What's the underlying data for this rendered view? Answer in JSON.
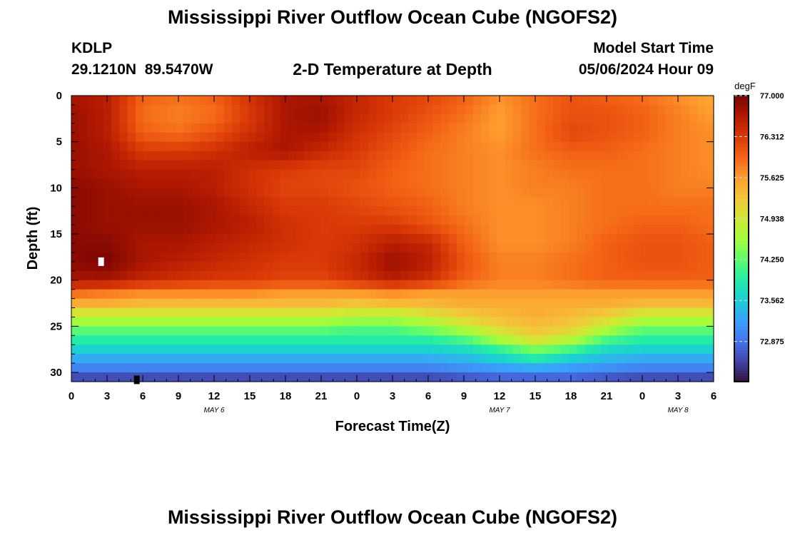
{
  "header": {
    "title": "Mississippi River Outflow Ocean Cube (NGOFS2)",
    "station_id": "KDLP",
    "coordinates": "29.1210N  89.5470W",
    "subtitle": "2-D Temperature at Depth",
    "model_start_label": "Model Start Time",
    "model_start_value": "05/06/2024 Hour 09"
  },
  "footer": {
    "title": "Mississippi River Outflow Ocean Cube (NGOFS2)"
  },
  "chart_data": {
    "type": "heatmap",
    "title": "2-D Temperature at Depth",
    "xlabel": "Forecast Time(Z)",
    "ylabel": "Depth (ft)",
    "x_unit": "hours since 2024-05-06 00Z",
    "xlim": [
      0,
      54
    ],
    "ylim": [
      0,
      31
    ],
    "y_inverted": true,
    "x_ticks": [
      {
        "value": 0,
        "label": "0"
      },
      {
        "value": 3,
        "label": "3"
      },
      {
        "value": 6,
        "label": "6"
      },
      {
        "value": 9,
        "label": "9"
      },
      {
        "value": 12,
        "label": "12"
      },
      {
        "value": 15,
        "label": "15"
      },
      {
        "value": 18,
        "label": "18"
      },
      {
        "value": 21,
        "label": "21"
      },
      {
        "value": 24,
        "label": "0"
      },
      {
        "value": 27,
        "label": "3"
      },
      {
        "value": 30,
        "label": "6"
      },
      {
        "value": 33,
        "label": "9"
      },
      {
        "value": 36,
        "label": "12"
      },
      {
        "value": 39,
        "label": "15"
      },
      {
        "value": 42,
        "label": "18"
      },
      {
        "value": 45,
        "label": "21"
      },
      {
        "value": 48,
        "label": "0"
      },
      {
        "value": 51,
        "label": "3"
      },
      {
        "value": 54,
        "label": "6"
      }
    ],
    "date_labels": [
      {
        "value": 12,
        "label": "MAY 6"
      },
      {
        "value": 36,
        "label": "MAY 7"
      },
      {
        "value": 51,
        "label": "MAY 8"
      }
    ],
    "y_ticks": [
      {
        "value": 0,
        "label": "0"
      },
      {
        "value": 5,
        "label": "5"
      },
      {
        "value": 10,
        "label": "10"
      },
      {
        "value": 15,
        "label": "15"
      },
      {
        "value": 20,
        "label": "20"
      },
      {
        "value": 25,
        "label": "25"
      },
      {
        "value": 30,
        "label": "30"
      }
    ],
    "colorbar": {
      "unit": "degF",
      "min": 72.2,
      "max": 77.0,
      "ticks": [
        {
          "value": 77.0,
          "label": "77.000"
        },
        {
          "value": 76.312,
          "label": "76.312"
        },
        {
          "value": 75.625,
          "label": "75.625"
        },
        {
          "value": 74.938,
          "label": "74.938"
        },
        {
          "value": 74.25,
          "label": "74.250"
        },
        {
          "value": 73.562,
          "label": "73.562"
        },
        {
          "value": 72.875,
          "label": "72.875"
        }
      ],
      "colors": [
        "#30123b",
        "#4145ab",
        "#4675ed",
        "#39a2fc",
        "#1bcfd4",
        "#24eca6",
        "#61fc6c",
        "#a4fc3b",
        "#d1e834",
        "#f3c63a",
        "#fe9b2d",
        "#f36315",
        "#d93806",
        "#b11901",
        "#7a0402"
      ]
    },
    "grid": {
      "x_hours": [
        0,
        3,
        6,
        9,
        12,
        15,
        18,
        21,
        24,
        27,
        30,
        33,
        36,
        39,
        42,
        45,
        48,
        51,
        54
      ],
      "depths_ft": [
        0,
        2,
        4,
        6,
        8,
        10,
        12,
        14,
        16,
        18,
        20,
        21.5,
        22.5,
        23.5,
        24.5,
        25.5,
        26.5,
        27.5,
        28.5,
        29.5,
        30.5
      ],
      "values_degF": [
        [
          76.7,
          76.6,
          76.0,
          75.9,
          76.0,
          76.4,
          76.7,
          76.7,
          76.5,
          76.3,
          76.2,
          76.0,
          75.7,
          75.9,
          76.1,
          76.0,
          75.9,
          75.7,
          75.5
        ],
        [
          76.8,
          76.6,
          75.9,
          75.8,
          75.9,
          76.3,
          76.7,
          76.8,
          76.5,
          76.3,
          76.1,
          75.9,
          75.6,
          75.9,
          76.1,
          76.1,
          76.0,
          75.8,
          75.6
        ],
        [
          76.8,
          76.6,
          76.0,
          75.9,
          76.1,
          76.4,
          76.7,
          76.7,
          76.4,
          76.2,
          76.0,
          75.8,
          75.6,
          75.9,
          76.2,
          76.1,
          76.0,
          75.8,
          75.7
        ],
        [
          76.8,
          76.7,
          76.3,
          76.3,
          76.4,
          76.6,
          76.7,
          76.5,
          76.3,
          76.1,
          75.9,
          75.8,
          75.7,
          75.9,
          76.0,
          76.0,
          75.9,
          75.8,
          75.7
        ],
        [
          76.8,
          76.7,
          76.6,
          76.6,
          76.6,
          76.4,
          76.3,
          76.2,
          76.2,
          76.0,
          75.9,
          75.8,
          75.7,
          75.8,
          75.9,
          75.9,
          75.9,
          75.8,
          75.7
        ],
        [
          76.9,
          76.8,
          76.7,
          76.7,
          76.6,
          76.4,
          76.2,
          76.2,
          76.1,
          76.0,
          75.9,
          75.8,
          75.7,
          75.8,
          75.8,
          75.9,
          75.9,
          75.8,
          75.8
        ],
        [
          76.9,
          76.8,
          76.8,
          76.8,
          76.7,
          76.5,
          76.3,
          76.3,
          76.2,
          76.1,
          76.0,
          75.8,
          75.7,
          75.7,
          75.8,
          75.9,
          75.9,
          75.9,
          75.9
        ],
        [
          76.9,
          76.8,
          76.8,
          76.8,
          76.7,
          76.6,
          76.4,
          76.3,
          76.3,
          76.3,
          76.1,
          75.9,
          75.7,
          75.7,
          75.8,
          75.9,
          76.0,
          76.0,
          75.9
        ],
        [
          76.9,
          76.9,
          76.7,
          76.7,
          76.6,
          76.5,
          76.4,
          76.3,
          76.4,
          76.6,
          76.5,
          76.0,
          75.7,
          75.7,
          75.8,
          76.0,
          76.1,
          76.1,
          76.0
        ],
        [
          76.9,
          77.0,
          76.7,
          76.6,
          76.5,
          76.4,
          76.3,
          76.3,
          76.5,
          76.8,
          76.6,
          76.1,
          75.8,
          75.8,
          75.9,
          76.0,
          76.1,
          76.1,
          76.0
        ],
        [
          76.7,
          76.7,
          76.5,
          76.4,
          76.3,
          76.3,
          76.2,
          76.2,
          76.4,
          76.6,
          76.4,
          76.0,
          75.8,
          75.8,
          75.9,
          76.0,
          76.0,
          76.0,
          76.0
        ],
        [
          75.9,
          75.8,
          75.7,
          75.7,
          75.7,
          75.7,
          75.6,
          75.6,
          75.6,
          75.7,
          75.6,
          75.6,
          75.6,
          75.6,
          75.6,
          75.6,
          75.6,
          75.6,
          75.6
        ],
        [
          75.5,
          75.5,
          75.4,
          75.4,
          75.4,
          75.4,
          75.4,
          75.4,
          75.3,
          75.4,
          75.4,
          75.5,
          75.5,
          75.5,
          75.5,
          75.5,
          75.4,
          75.4,
          75.4
        ],
        [
          75.0,
          75.0,
          75.0,
          75.0,
          75.0,
          75.0,
          75.0,
          75.0,
          74.9,
          74.9,
          75.1,
          75.3,
          75.4,
          75.5,
          75.4,
          75.3,
          75.0,
          75.0,
          75.0
        ],
        [
          74.6,
          74.6,
          74.6,
          74.6,
          74.6,
          74.6,
          74.6,
          74.6,
          74.5,
          74.5,
          74.7,
          75.0,
          75.3,
          75.4,
          75.3,
          75.0,
          74.6,
          74.6,
          74.6
        ],
        [
          74.2,
          74.2,
          74.2,
          74.2,
          74.2,
          74.2,
          74.2,
          74.2,
          74.1,
          74.1,
          74.3,
          74.6,
          75.0,
          75.3,
          75.1,
          74.6,
          74.2,
          74.2,
          74.2
        ],
        [
          73.9,
          73.9,
          73.9,
          73.9,
          73.9,
          73.9,
          73.9,
          73.9,
          73.9,
          73.9,
          73.9,
          74.1,
          74.6,
          75.0,
          74.7,
          74.1,
          73.9,
          73.9,
          73.9
        ],
        [
          73.6,
          73.6,
          73.6,
          73.6,
          73.6,
          73.6,
          73.6,
          73.6,
          73.6,
          73.6,
          73.6,
          73.7,
          74.0,
          74.4,
          74.1,
          73.7,
          73.6,
          73.6,
          73.6
        ],
        [
          73.3,
          73.3,
          73.3,
          73.3,
          73.3,
          73.3,
          73.3,
          73.3,
          73.3,
          73.3,
          73.3,
          73.4,
          73.6,
          73.9,
          73.6,
          73.4,
          73.3,
          73.3,
          73.3
        ],
        [
          73.0,
          73.0,
          73.0,
          73.0,
          73.0,
          73.0,
          73.0,
          73.0,
          73.0,
          73.0,
          73.0,
          73.1,
          73.2,
          73.3,
          73.2,
          73.1,
          73.0,
          73.0,
          73.0
        ],
        [
          72.6,
          72.6,
          72.6,
          72.6,
          72.6,
          72.6,
          72.6,
          72.6,
          72.6,
          72.6,
          72.6,
          72.7,
          72.8,
          72.8,
          72.8,
          72.7,
          72.6,
          72.6,
          72.6
        ]
      ]
    },
    "markers": [
      {
        "hour": 2.5,
        "depth": 18.0,
        "color": "#ffffff"
      },
      {
        "hour": 5.5,
        "depth": 30.8,
        "color": "#000000"
      }
    ]
  }
}
